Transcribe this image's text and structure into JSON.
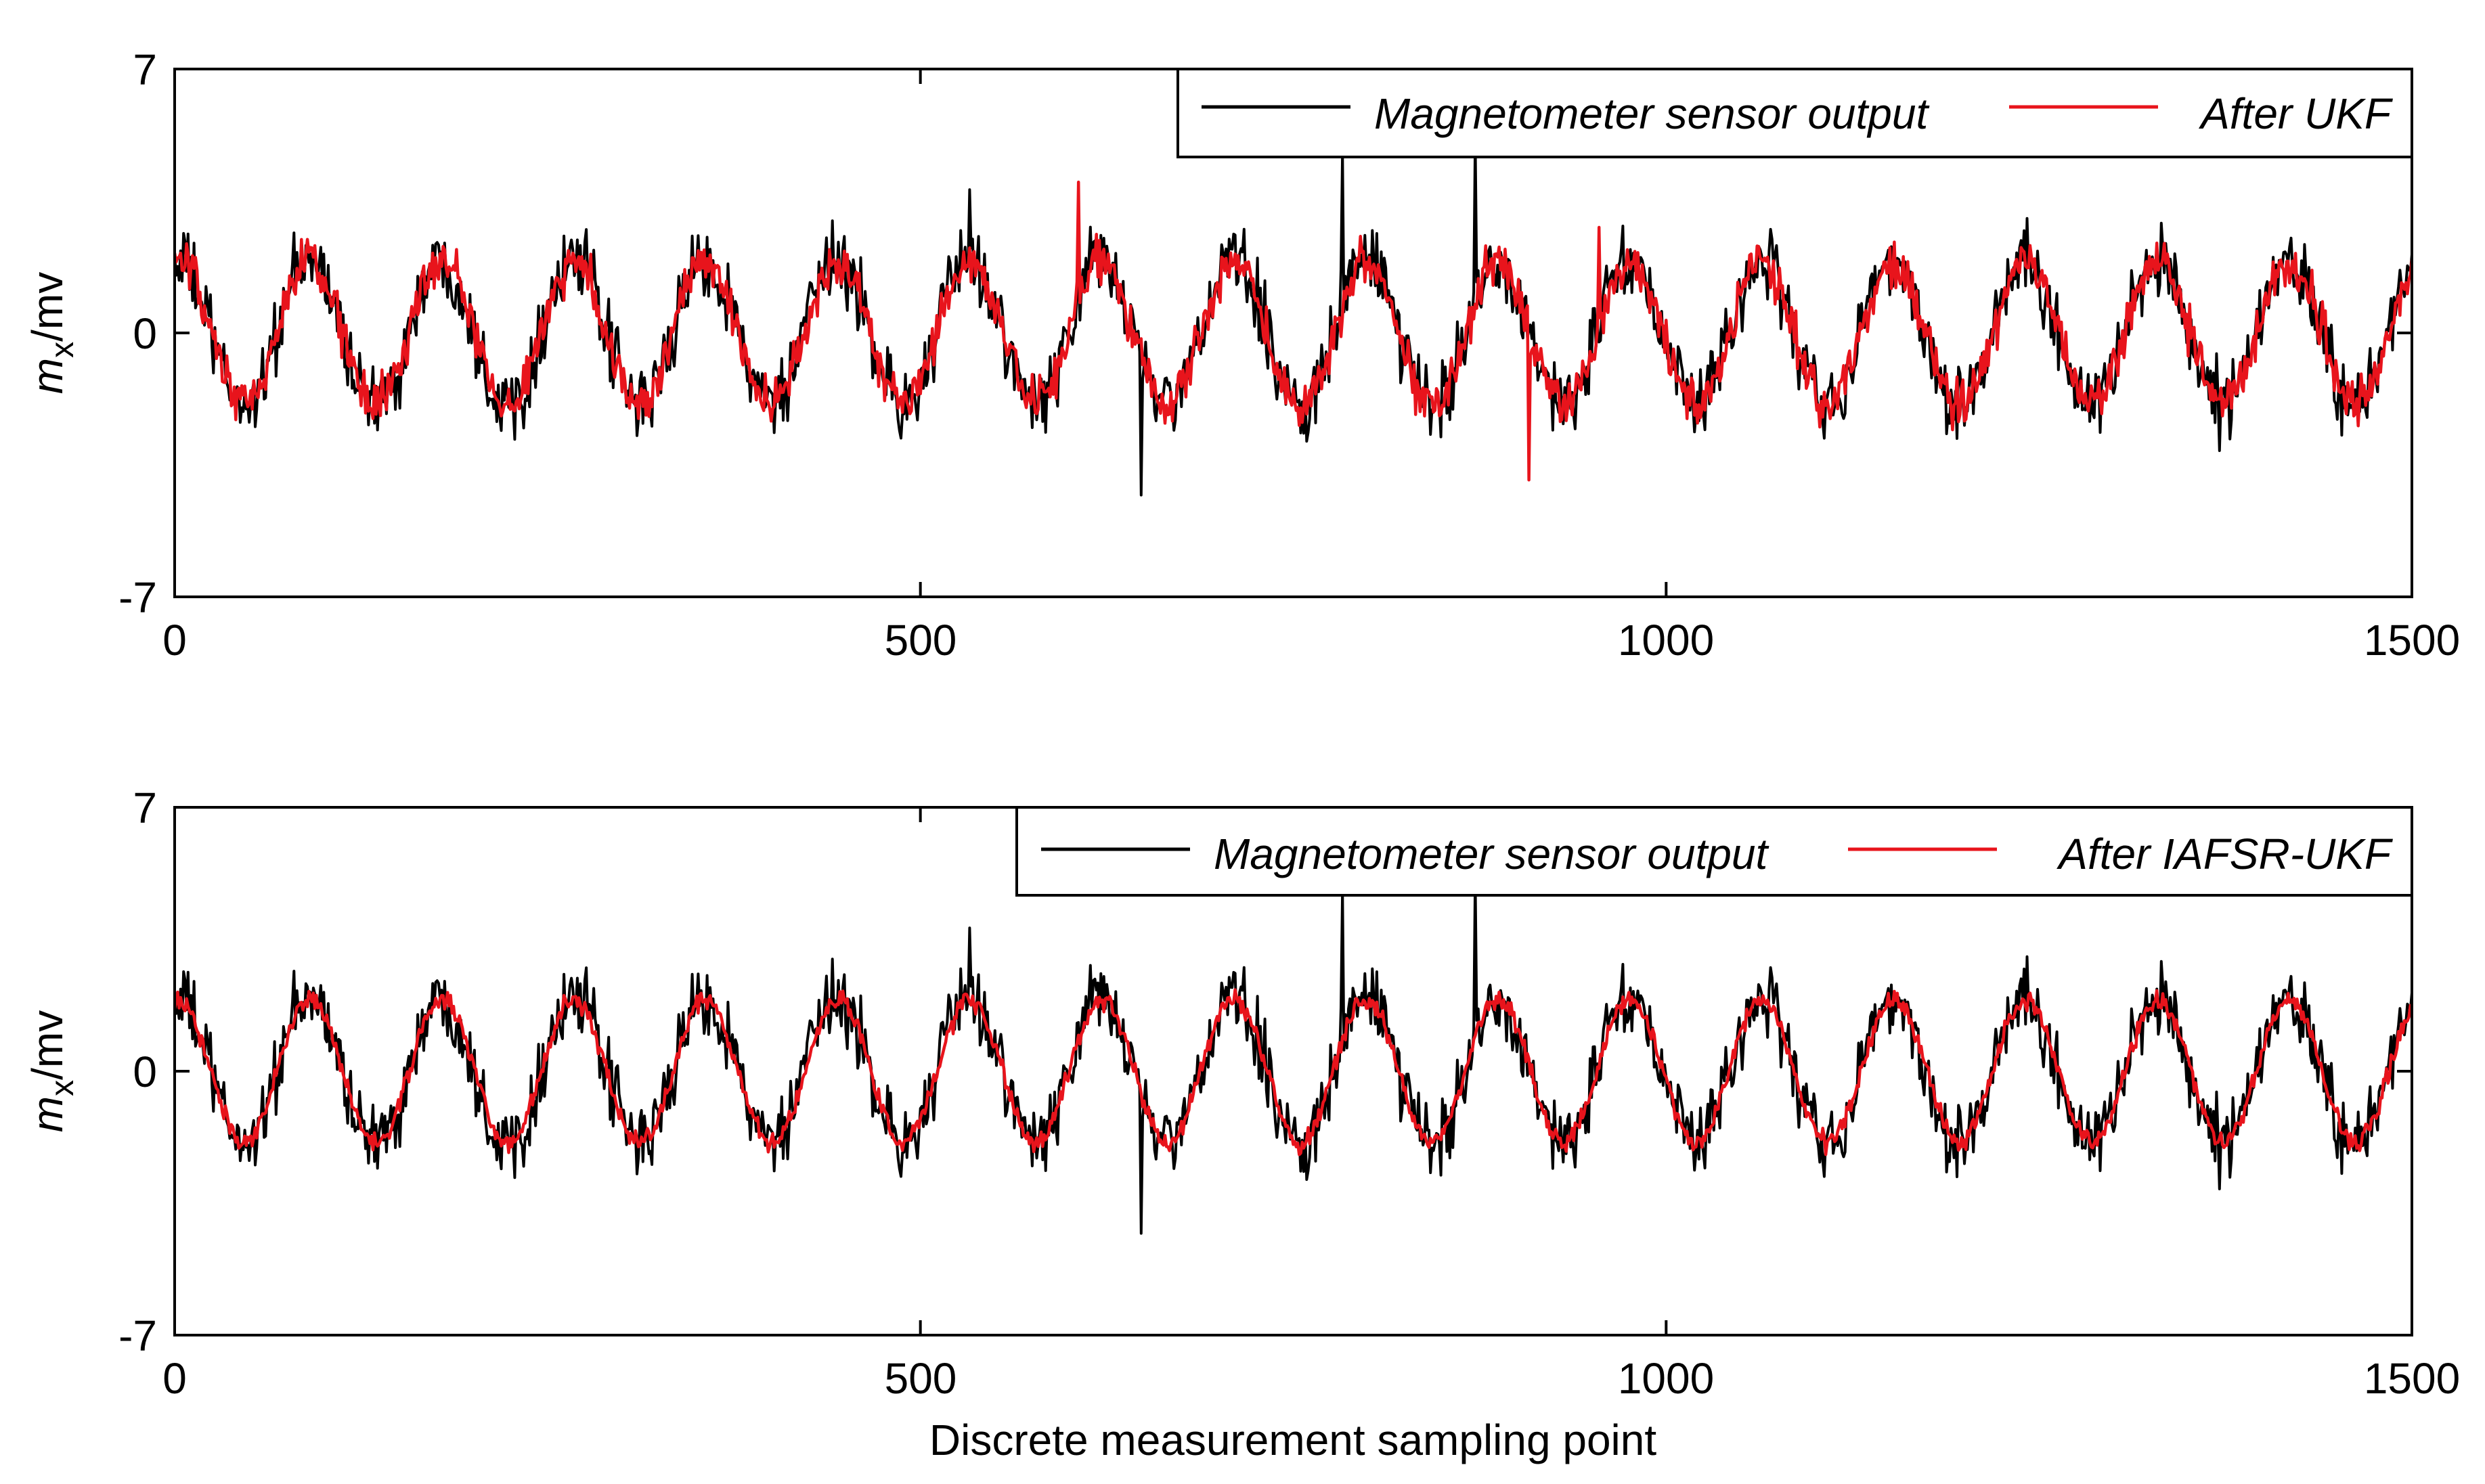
{
  "chart_data": [
    {
      "type": "line",
      "name": "top-panel",
      "ylabel": {
        "main": "m",
        "sub": "x",
        "unit": "/mv"
      },
      "xlabel": "",
      "xlim": [
        0,
        1500
      ],
      "ylim": [
        -7,
        7
      ],
      "xticks": [
        0,
        500,
        1000,
        1500
      ],
      "yticks": [
        -7,
        0,
        7
      ],
      "legend_position": "top-right",
      "series_signal": {
        "amplitude": 1.9,
        "period": 88.5,
        "offset": 0
      },
      "series": [
        {
          "name": "Magnetometer sensor output",
          "color": "#000000",
          "noise": 0.85,
          "x_range": [
            0,
            1500
          ],
          "spikes": [
            {
              "x": 783,
              "y": 4.8
            },
            {
              "x": 872,
              "y": 5.2
            },
            {
              "x": 533,
              "y": 3.8
            },
            {
              "x": 648,
              "y": -4.3
            }
          ]
        },
        {
          "name": "After UKF",
          "color": "#e8141c",
          "noise": 0.55,
          "x_range": [
            0,
            1500
          ],
          "spikes": [
            {
              "x": 606,
              "y": 4.0
            },
            {
              "x": 908,
              "y": -3.9
            },
            {
              "x": 955,
              "y": 2.8
            }
          ]
        }
      ]
    },
    {
      "type": "line",
      "name": "bottom-panel",
      "ylabel": {
        "main": "m",
        "sub": "x",
        "unit": "/mv"
      },
      "xlabel": "Discrete measurement sampling point",
      "xlim": [
        0,
        1500
      ],
      "ylim": [
        -7,
        7
      ],
      "xticks": [
        0,
        500,
        1000,
        1500
      ],
      "yticks": [
        -7,
        0,
        7
      ],
      "legend_position": "top-right",
      "series_signal": {
        "amplitude": 1.9,
        "period": 88.5,
        "offset": 0
      },
      "series": [
        {
          "name": "Magnetometer sensor output",
          "color": "#000000",
          "noise": 0.85,
          "x_range": [
            0,
            1500
          ],
          "spikes": [
            {
              "x": 783,
              "y": 4.8
            },
            {
              "x": 872,
              "y": 5.2
            },
            {
              "x": 533,
              "y": 3.8
            },
            {
              "x": 648,
              "y": -4.3
            }
          ]
        },
        {
          "name": "After IAFSR-UKF",
          "color": "#e8141c",
          "noise": 0.22,
          "x_range": [
            0,
            1500
          ],
          "spikes": []
        }
      ]
    }
  ]
}
